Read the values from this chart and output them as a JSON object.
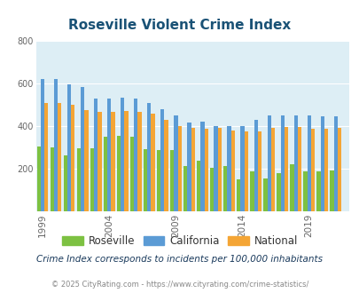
{
  "title": "Roseville Violent Crime Index",
  "title_color": "#1a5276",
  "subtitle": "Crime Index corresponds to incidents per 100,000 inhabitants",
  "footer": "© 2025 CityRating.com - https://www.cityrating.com/crime-statistics/",
  "years": [
    1999,
    2000,
    2001,
    2002,
    2003,
    2004,
    2005,
    2006,
    2007,
    2008,
    2009,
    2010,
    2011,
    2012,
    2013,
    2014,
    2015,
    2016,
    2017,
    2018,
    2019,
    2020,
    2021
  ],
  "roseville": [
    305,
    300,
    260,
    295,
    295,
    350,
    355,
    350,
    290,
    285,
    285,
    210,
    235,
    205,
    210,
    150,
    185,
    155,
    180,
    220,
    185,
    185,
    190
  ],
  "california": [
    620,
    620,
    595,
    585,
    530,
    530,
    535,
    530,
    510,
    480,
    450,
    415,
    420,
    400,
    400,
    400,
    430,
    450,
    450,
    450,
    450,
    445,
    445
  ],
  "national": [
    510,
    510,
    500,
    475,
    465,
    465,
    470,
    465,
    460,
    430,
    400,
    390,
    385,
    390,
    380,
    375,
    375,
    390,
    395,
    395,
    385,
    385,
    390
  ],
  "colors": {
    "roseville": "#7dc142",
    "california": "#5b9bd5",
    "national": "#f4a535"
  },
  "bg_color": "#ddeef5",
  "ylim": [
    0,
    800
  ],
  "yticks": [
    0,
    200,
    400,
    600,
    800
  ],
  "xtick_years": [
    1999,
    2004,
    2009,
    2014,
    2019
  ],
  "legend_labels": [
    "Roseville",
    "California",
    "National"
  ],
  "bar_width": 0.28
}
